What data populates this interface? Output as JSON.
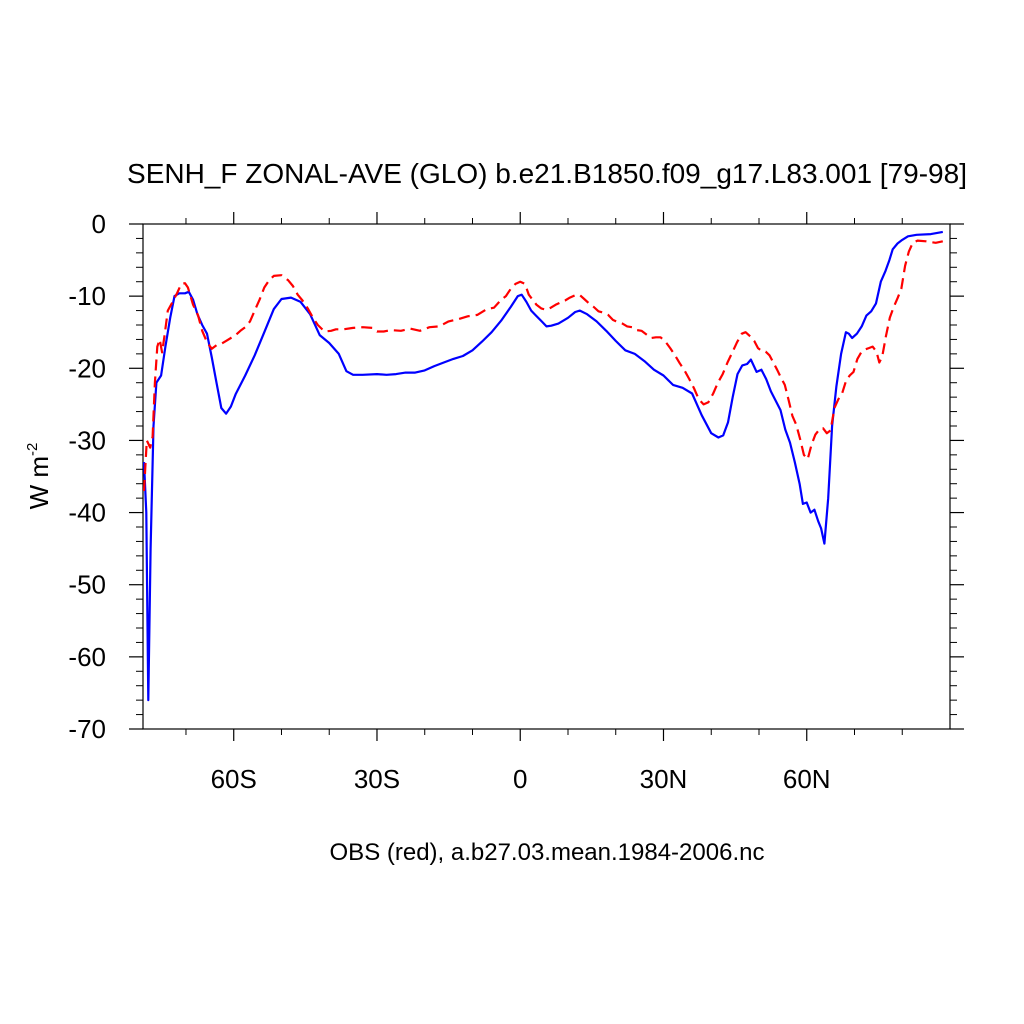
{
  "chart_data": {
    "type": "line",
    "title": "SENH_F ZONAL-AVE (GLO) b.e21.B1850.f09_g17.L83.001 [79-98]",
    "ylabel": "W m",
    "ylabel_sup": "-2",
    "xlabel": "OBS (red), a.b27.03.mean.1984-2006.nc",
    "xlim": [
      -79,
      90
    ],
    "ylim": [
      -70,
      0
    ],
    "x_ticks": [
      {
        "value": -60,
        "label": "60S"
      },
      {
        "value": -30,
        "label": "30S"
      },
      {
        "value": 0,
        "label": "0"
      },
      {
        "value": 30,
        "label": "30N"
      },
      {
        "value": 60,
        "label": "60N"
      }
    ],
    "y_ticks": [
      {
        "value": 0,
        "label": "0"
      },
      {
        "value": -10,
        "label": "-10"
      },
      {
        "value": -20,
        "label": "-20"
      },
      {
        "value": -30,
        "label": "-30"
      },
      {
        "value": -40,
        "label": "-40"
      },
      {
        "value": -50,
        "label": "-50"
      },
      {
        "value": -60,
        "label": "-60"
      },
      {
        "value": -70,
        "label": "-70"
      }
    ],
    "grid": false,
    "series": [
      {
        "color": "#0000ff",
        "dash": "solid",
        "points": [
          [
            -78.8,
            -33
          ],
          [
            -78.3,
            -40
          ],
          [
            -77.9,
            -66
          ],
          [
            -77.4,
            -45
          ],
          [
            -76.8,
            -28
          ],
          [
            -76.2,
            -22
          ],
          [
            -75.2,
            -21
          ],
          [
            -74.3,
            -17
          ],
          [
            -73.3,
            -13
          ],
          [
            -72.4,
            -10
          ],
          [
            -71.4,
            -9.6
          ],
          [
            -70.2,
            -9.6
          ],
          [
            -69.4,
            -9.4
          ],
          [
            -68.5,
            -10.5
          ],
          [
            -67.6,
            -12.5
          ],
          [
            -66.6,
            -14
          ],
          [
            -65.6,
            -15.2
          ],
          [
            -64.6,
            -18.5
          ],
          [
            -63.6,
            -22
          ],
          [
            -62.6,
            -25.5
          ],
          [
            -61.6,
            -26.3
          ],
          [
            -60.6,
            -25.3
          ],
          [
            -59.6,
            -23.6
          ],
          [
            -57.6,
            -21
          ],
          [
            -55.6,
            -18.2
          ],
          [
            -53.6,
            -15
          ],
          [
            -51.6,
            -11.8
          ],
          [
            -50,
            -10.4
          ],
          [
            -48,
            -10.2
          ],
          [
            -46,
            -10.8
          ],
          [
            -44,
            -12.5
          ],
          [
            -42,
            -15.4
          ],
          [
            -40,
            -16.5
          ],
          [
            -38,
            -18
          ],
          [
            -36.4,
            -20.4
          ],
          [
            -35,
            -20.9
          ],
          [
            -33,
            -20.9
          ],
          [
            -30,
            -20.8
          ],
          [
            -28,
            -20.9
          ],
          [
            -26,
            -20.8
          ],
          [
            -24,
            -20.6
          ],
          [
            -22,
            -20.6
          ],
          [
            -20,
            -20.3
          ],
          [
            -18,
            -19.7
          ],
          [
            -16,
            -19.2
          ],
          [
            -14,
            -18.7
          ],
          [
            -12,
            -18.3
          ],
          [
            -10,
            -17.5
          ],
          [
            -8,
            -16.3
          ],
          [
            -6,
            -15
          ],
          [
            -4,
            -13.4
          ],
          [
            -2,
            -11.5
          ],
          [
            -0.5,
            -10
          ],
          [
            0.3,
            -9.8
          ],
          [
            1.3,
            -10.8
          ],
          [
            2.3,
            -12
          ],
          [
            3.3,
            -12.7
          ],
          [
            4.5,
            -13.5
          ],
          [
            5.5,
            -14.2
          ],
          [
            6.5,
            -14.1
          ],
          [
            8,
            -13.8
          ],
          [
            10,
            -13
          ],
          [
            11.5,
            -12.2
          ],
          [
            12.5,
            -12
          ],
          [
            14,
            -12.5
          ],
          [
            16,
            -13.5
          ],
          [
            18,
            -14.8
          ],
          [
            20,
            -16.2
          ],
          [
            22,
            -17.5
          ],
          [
            24,
            -18
          ],
          [
            26,
            -19
          ],
          [
            28,
            -20.2
          ],
          [
            30,
            -21
          ],
          [
            32,
            -22.3
          ],
          [
            34,
            -22.7
          ],
          [
            36,
            -23.5
          ],
          [
            38,
            -26.5
          ],
          [
            40,
            -29
          ],
          [
            41.5,
            -29.6
          ],
          [
            42.5,
            -29.3
          ],
          [
            43.5,
            -27.5
          ],
          [
            44.5,
            -24
          ],
          [
            45.5,
            -20.8
          ],
          [
            46.5,
            -19.6
          ],
          [
            47.5,
            -19.4
          ],
          [
            48.3,
            -18.8
          ],
          [
            49.5,
            -20.5
          ],
          [
            50.5,
            -20.2
          ],
          [
            51.5,
            -21.5
          ],
          [
            52.5,
            -23.2
          ],
          [
            53.5,
            -24.5
          ],
          [
            54.5,
            -25.8
          ],
          [
            55.5,
            -28.5
          ],
          [
            56.5,
            -30.3
          ],
          [
            57.5,
            -33
          ],
          [
            58.5,
            -36
          ],
          [
            59.2,
            -38.8
          ],
          [
            60,
            -38.6
          ],
          [
            60.8,
            -40
          ],
          [
            61.6,
            -39.6
          ],
          [
            62.4,
            -41.2
          ],
          [
            63,
            -42.2
          ],
          [
            63.7,
            -44.3
          ],
          [
            64.5,
            -38
          ],
          [
            65.3,
            -28
          ],
          [
            66.2,
            -22.5
          ],
          [
            67.2,
            -18
          ],
          [
            68.2,
            -15
          ],
          [
            68.8,
            -15.2
          ],
          [
            69.5,
            -15.8
          ],
          [
            70.5,
            -15.2
          ],
          [
            71.5,
            -14.2
          ],
          [
            72.5,
            -12.7
          ],
          [
            73.5,
            -12.1
          ],
          [
            74.5,
            -11
          ],
          [
            75.5,
            -8
          ],
          [
            76.5,
            -6.5
          ],
          [
            77.3,
            -5
          ],
          [
            78,
            -3.5
          ],
          [
            79,
            -2.7
          ],
          [
            80,
            -2.2
          ],
          [
            81.2,
            -1.7
          ],
          [
            83,
            -1.5
          ],
          [
            86,
            -1.4
          ],
          [
            88.5,
            -1.1
          ]
        ]
      },
      {
        "color": "#ff0000",
        "dash": "dashed",
        "points": [
          [
            -78.8,
            -37
          ],
          [
            -78.2,
            -30
          ],
          [
            -77.5,
            -31
          ],
          [
            -77,
            -29.5
          ],
          [
            -76.5,
            -22
          ],
          [
            -76,
            -17
          ],
          [
            -75.5,
            -16
          ],
          [
            -75,
            -17.8
          ],
          [
            -74.5,
            -15.5
          ],
          [
            -73.8,
            -12
          ],
          [
            -72.8,
            -10.8
          ],
          [
            -71.8,
            -9.5
          ],
          [
            -71,
            -8.3
          ],
          [
            -70.2,
            -8.2
          ],
          [
            -69.6,
            -8.8
          ],
          [
            -68.5,
            -11.2
          ],
          [
            -67.5,
            -12.6
          ],
          [
            -66.6,
            -14.8
          ],
          [
            -65.6,
            -16.4
          ],
          [
            -64.6,
            -17.3
          ],
          [
            -63.6,
            -16.8
          ],
          [
            -62.6,
            -16.6
          ],
          [
            -61.6,
            -16.2
          ],
          [
            -60.6,
            -15.8
          ],
          [
            -59.6,
            -15.4
          ],
          [
            -58.6,
            -14.8
          ],
          [
            -57.6,
            -14.3
          ],
          [
            -56.6,
            -13.5
          ],
          [
            -55.6,
            -12
          ],
          [
            -54.6,
            -10.5
          ],
          [
            -53.6,
            -8.8
          ],
          [
            -52.6,
            -7.8
          ],
          [
            -51.6,
            -7.2
          ],
          [
            -50,
            -7.1
          ],
          [
            -48.6,
            -7.8
          ],
          [
            -47.6,
            -8.6
          ],
          [
            -46.6,
            -9.8
          ],
          [
            -45.6,
            -10.6
          ],
          [
            -44.4,
            -11.8
          ],
          [
            -43.4,
            -13
          ],
          [
            -42.4,
            -14
          ],
          [
            -41,
            -14.9
          ],
          [
            -39.6,
            -14.8
          ],
          [
            -38.6,
            -14.6
          ],
          [
            -37,
            -14.6
          ],
          [
            -35,
            -14.4
          ],
          [
            -33,
            -14.3
          ],
          [
            -31,
            -14.4
          ],
          [
            -30,
            -14.9
          ],
          [
            -28.6,
            -14.9
          ],
          [
            -27,
            -14.7
          ],
          [
            -25,
            -14.8
          ],
          [
            -23,
            -14.5
          ],
          [
            -21,
            -14.8
          ],
          [
            -19,
            -14.3
          ],
          [
            -17,
            -14.2
          ],
          [
            -15,
            -13.5
          ],
          [
            -13,
            -13.2
          ],
          [
            -11,
            -12.8
          ],
          [
            -9,
            -12.6
          ],
          [
            -7,
            -11.8
          ],
          [
            -5.5,
            -11.6
          ],
          [
            -4,
            -10.5
          ],
          [
            -3,
            -10
          ],
          [
            -2,
            -9
          ],
          [
            -1,
            -8.3
          ],
          [
            0,
            -8
          ],
          [
            1,
            -8.3
          ],
          [
            1.8,
            -9.8
          ],
          [
            2.6,
            -10.5
          ],
          [
            3.4,
            -11.2
          ],
          [
            4.4,
            -11.7
          ],
          [
            5.4,
            -11.9
          ],
          [
            6.4,
            -11.6
          ],
          [
            7.4,
            -11.2
          ],
          [
            8.4,
            -10.9
          ],
          [
            9.4,
            -10.6
          ],
          [
            10.4,
            -10.2
          ],
          [
            11.4,
            -9.9
          ],
          [
            12.4,
            -9.8
          ],
          [
            13.4,
            -10.4
          ],
          [
            14.4,
            -11
          ],
          [
            15.4,
            -11.5
          ],
          [
            16.4,
            -12.1
          ],
          [
            17.4,
            -12.3
          ],
          [
            18.4,
            -12.6
          ],
          [
            19.4,
            -13.3
          ],
          [
            20.4,
            -13.6
          ],
          [
            21.4,
            -13.8
          ],
          [
            22.4,
            -14.2
          ],
          [
            23.4,
            -14.3
          ],
          [
            24.4,
            -14.7
          ],
          [
            25.4,
            -14.8
          ],
          [
            26.4,
            -15.3
          ],
          [
            27.4,
            -15.8
          ],
          [
            28.4,
            -15.7
          ],
          [
            29.4,
            -15.7
          ],
          [
            30.4,
            -16.3
          ],
          [
            31.4,
            -17.2
          ],
          [
            32.4,
            -18.2
          ],
          [
            33.4,
            -19.3
          ],
          [
            34.4,
            -20.3
          ],
          [
            35.4,
            -21.5
          ],
          [
            36.4,
            -22.8
          ],
          [
            37.4,
            -24.3
          ],
          [
            38.4,
            -25
          ],
          [
            39.4,
            -24.7
          ],
          [
            40.4,
            -23.5
          ],
          [
            41.4,
            -22
          ],
          [
            42.4,
            -20.8
          ],
          [
            43.4,
            -19.2
          ],
          [
            44.4,
            -17.8
          ],
          [
            45.4,
            -16.4
          ],
          [
            46.4,
            -15.2
          ],
          [
            47.2,
            -15
          ],
          [
            48.2,
            -15.6
          ],
          [
            49,
            -16.2
          ],
          [
            49.8,
            -17.2
          ],
          [
            50.6,
            -17.6
          ],
          [
            51.4,
            -17.7
          ],
          [
            52.2,
            -18.2
          ],
          [
            53,
            -19.2
          ],
          [
            53.8,
            -20.2
          ],
          [
            54.6,
            -21.3
          ],
          [
            55.4,
            -22.3
          ],
          [
            56.2,
            -24.4
          ],
          [
            57,
            -26.6
          ],
          [
            57.8,
            -27.8
          ],
          [
            58.6,
            -29.8
          ],
          [
            59.4,
            -32
          ],
          [
            60.2,
            -32.6
          ],
          [
            61,
            -30.6
          ],
          [
            61.8,
            -29.2
          ],
          [
            62.6,
            -28.5
          ],
          [
            63.4,
            -28.3
          ],
          [
            64.2,
            -29
          ],
          [
            65,
            -28.6
          ],
          [
            65.8,
            -25.5
          ],
          [
            66.6,
            -24.3
          ],
          [
            67.4,
            -23.5
          ],
          [
            68.2,
            -21.8
          ],
          [
            69,
            -21
          ],
          [
            69.8,
            -20.5
          ],
          [
            70.6,
            -18.7
          ],
          [
            71.4,
            -17.8
          ],
          [
            72.2,
            -17.4
          ],
          [
            73,
            -17.2
          ],
          [
            73.8,
            -17
          ],
          [
            74.6,
            -17.7
          ],
          [
            75.2,
            -19.2
          ],
          [
            75.8,
            -18.4
          ],
          [
            76.6,
            -15.5
          ],
          [
            77.4,
            -13
          ],
          [
            78.2,
            -11.5
          ],
          [
            79,
            -10.3
          ],
          [
            79.8,
            -9
          ],
          [
            80.6,
            -5.8
          ],
          [
            81.4,
            -3.8
          ],
          [
            82.2,
            -2.6
          ],
          [
            83.2,
            -2.3
          ],
          [
            85,
            -2.4
          ],
          [
            87,
            -2.6
          ],
          [
            88.5,
            -2.4
          ]
        ]
      }
    ]
  }
}
